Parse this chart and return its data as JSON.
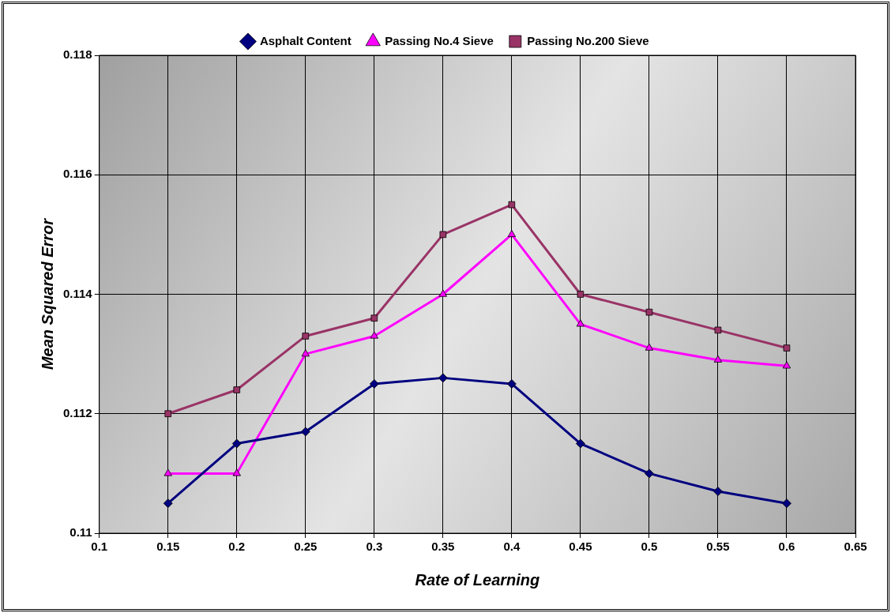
{
  "chart_data": {
    "type": "line",
    "xlabel": "Rate of Learning",
    "ylabel": "Mean Squared Error",
    "x": [
      0.15,
      0.2,
      0.25,
      0.3,
      0.35,
      0.4,
      0.45,
      0.5,
      0.55,
      0.6
    ],
    "series": [
      {
        "name": "Asphalt Content",
        "color": "#000080",
        "marker": "diamond",
        "values": [
          0.1105,
          0.1115,
          0.1117,
          0.1125,
          0.1126,
          0.1125,
          0.1115,
          0.111,
          0.1107,
          0.1105
        ]
      },
      {
        "name": "Passing No.4 Sieve",
        "color": "#ff00ff",
        "marker": "triangle",
        "values": [
          0.111,
          0.111,
          0.113,
          0.1133,
          0.114,
          0.115,
          0.1135,
          0.1131,
          0.1129,
          0.1128
        ]
      },
      {
        "name": "Passing No.200 Sieve",
        "color": "#993366",
        "marker": "square",
        "values": [
          0.112,
          0.1124,
          0.1133,
          0.1136,
          0.115,
          0.1155,
          0.114,
          0.1137,
          0.1134,
          0.1131
        ]
      }
    ],
    "xlim": [
      0.1,
      0.65
    ],
    "xticks": [
      0.1,
      0.15,
      0.2,
      0.25,
      0.3,
      0.35,
      0.4,
      0.45,
      0.5,
      0.55,
      0.6,
      0.65
    ],
    "ylim": [
      0.11,
      0.118
    ],
    "yticks": [
      0.11,
      0.112,
      0.114,
      0.116,
      0.118
    ],
    "grid": true,
    "legend": "top",
    "line_style": "solid"
  }
}
